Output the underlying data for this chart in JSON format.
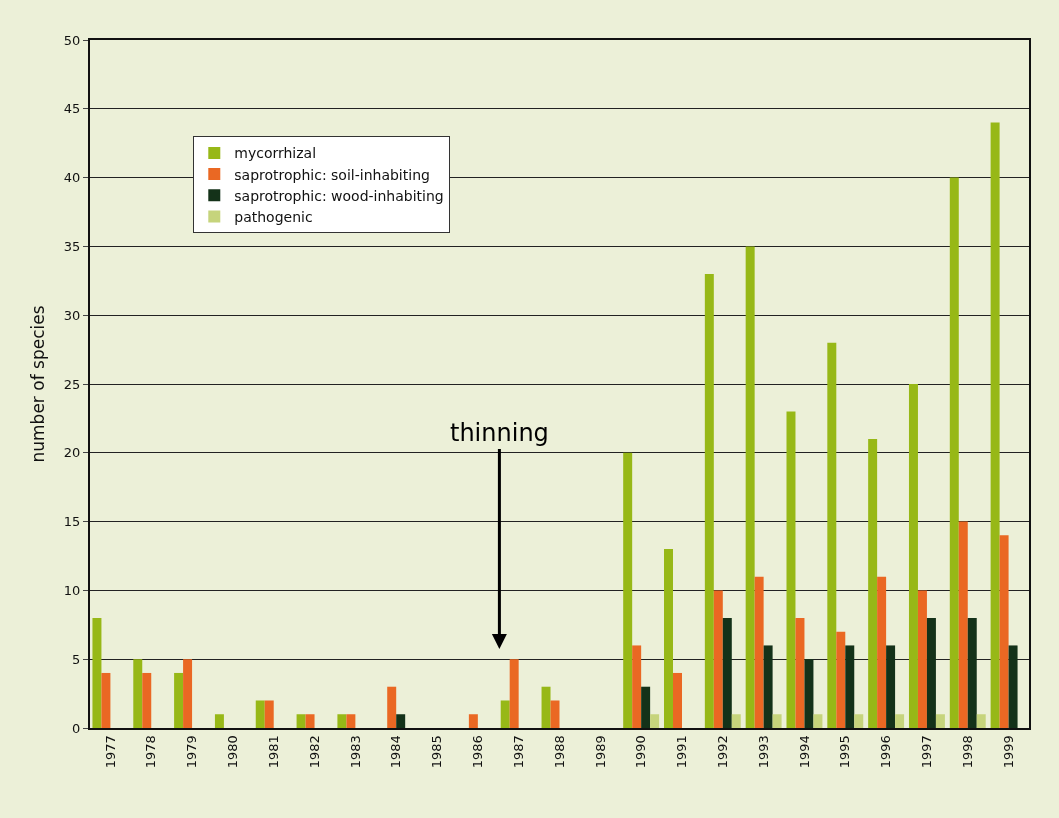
{
  "chart_data": {
    "type": "bar",
    "ylabel": "number of species",
    "categories": [
      "1977",
      "1978",
      "1979",
      "1980",
      "1981",
      "1982",
      "1983",
      "1984",
      "1985",
      "1986",
      "1987",
      "1988",
      "1989",
      "1990",
      "1991",
      "1992",
      "1993",
      "1994",
      "1995",
      "1996",
      "1997",
      "1998",
      "1999"
    ],
    "series": [
      {
        "name": "mycorrhizal",
        "color": "#97b817",
        "values": [
          8,
          5,
          4,
          1,
          2,
          1,
          1,
          0,
          0,
          0,
          2,
          3,
          0,
          20,
          13,
          33,
          35,
          23,
          28,
          21,
          25,
          40,
          44
        ]
      },
      {
        "name": "saprotrophic: soil-inhabiting",
        "color": "#ea6823",
        "values": [
          4,
          4,
          5,
          0,
          2,
          1,
          1,
          3,
          0,
          1,
          5,
          2,
          0,
          6,
          4,
          10,
          11,
          8,
          7,
          11,
          10,
          15,
          14
        ]
      },
      {
        "name": "saprotrophic: wood-inhabiting",
        "color": "#143219",
        "values": [
          0,
          0,
          0,
          0,
          0,
          0,
          0,
          1,
          0,
          0,
          0,
          0,
          0,
          3,
          0,
          8,
          6,
          5,
          6,
          6,
          8,
          8,
          6
        ]
      },
      {
        "name": "pathogenic",
        "color": "#c6d47c",
        "values": [
          0,
          0,
          0,
          0,
          0,
          0,
          0,
          0,
          0,
          0,
          0,
          0,
          0,
          1,
          0,
          1,
          1,
          1,
          1,
          1,
          1,
          1,
          0
        ]
      }
    ],
    "ylim": [
      0,
      50
    ],
    "yticks": [
      0,
      5,
      10,
      15,
      20,
      25,
      30,
      35,
      40,
      45,
      50
    ],
    "grid": "y",
    "legend": "top left",
    "annotations": [
      "thinning"
    ]
  }
}
